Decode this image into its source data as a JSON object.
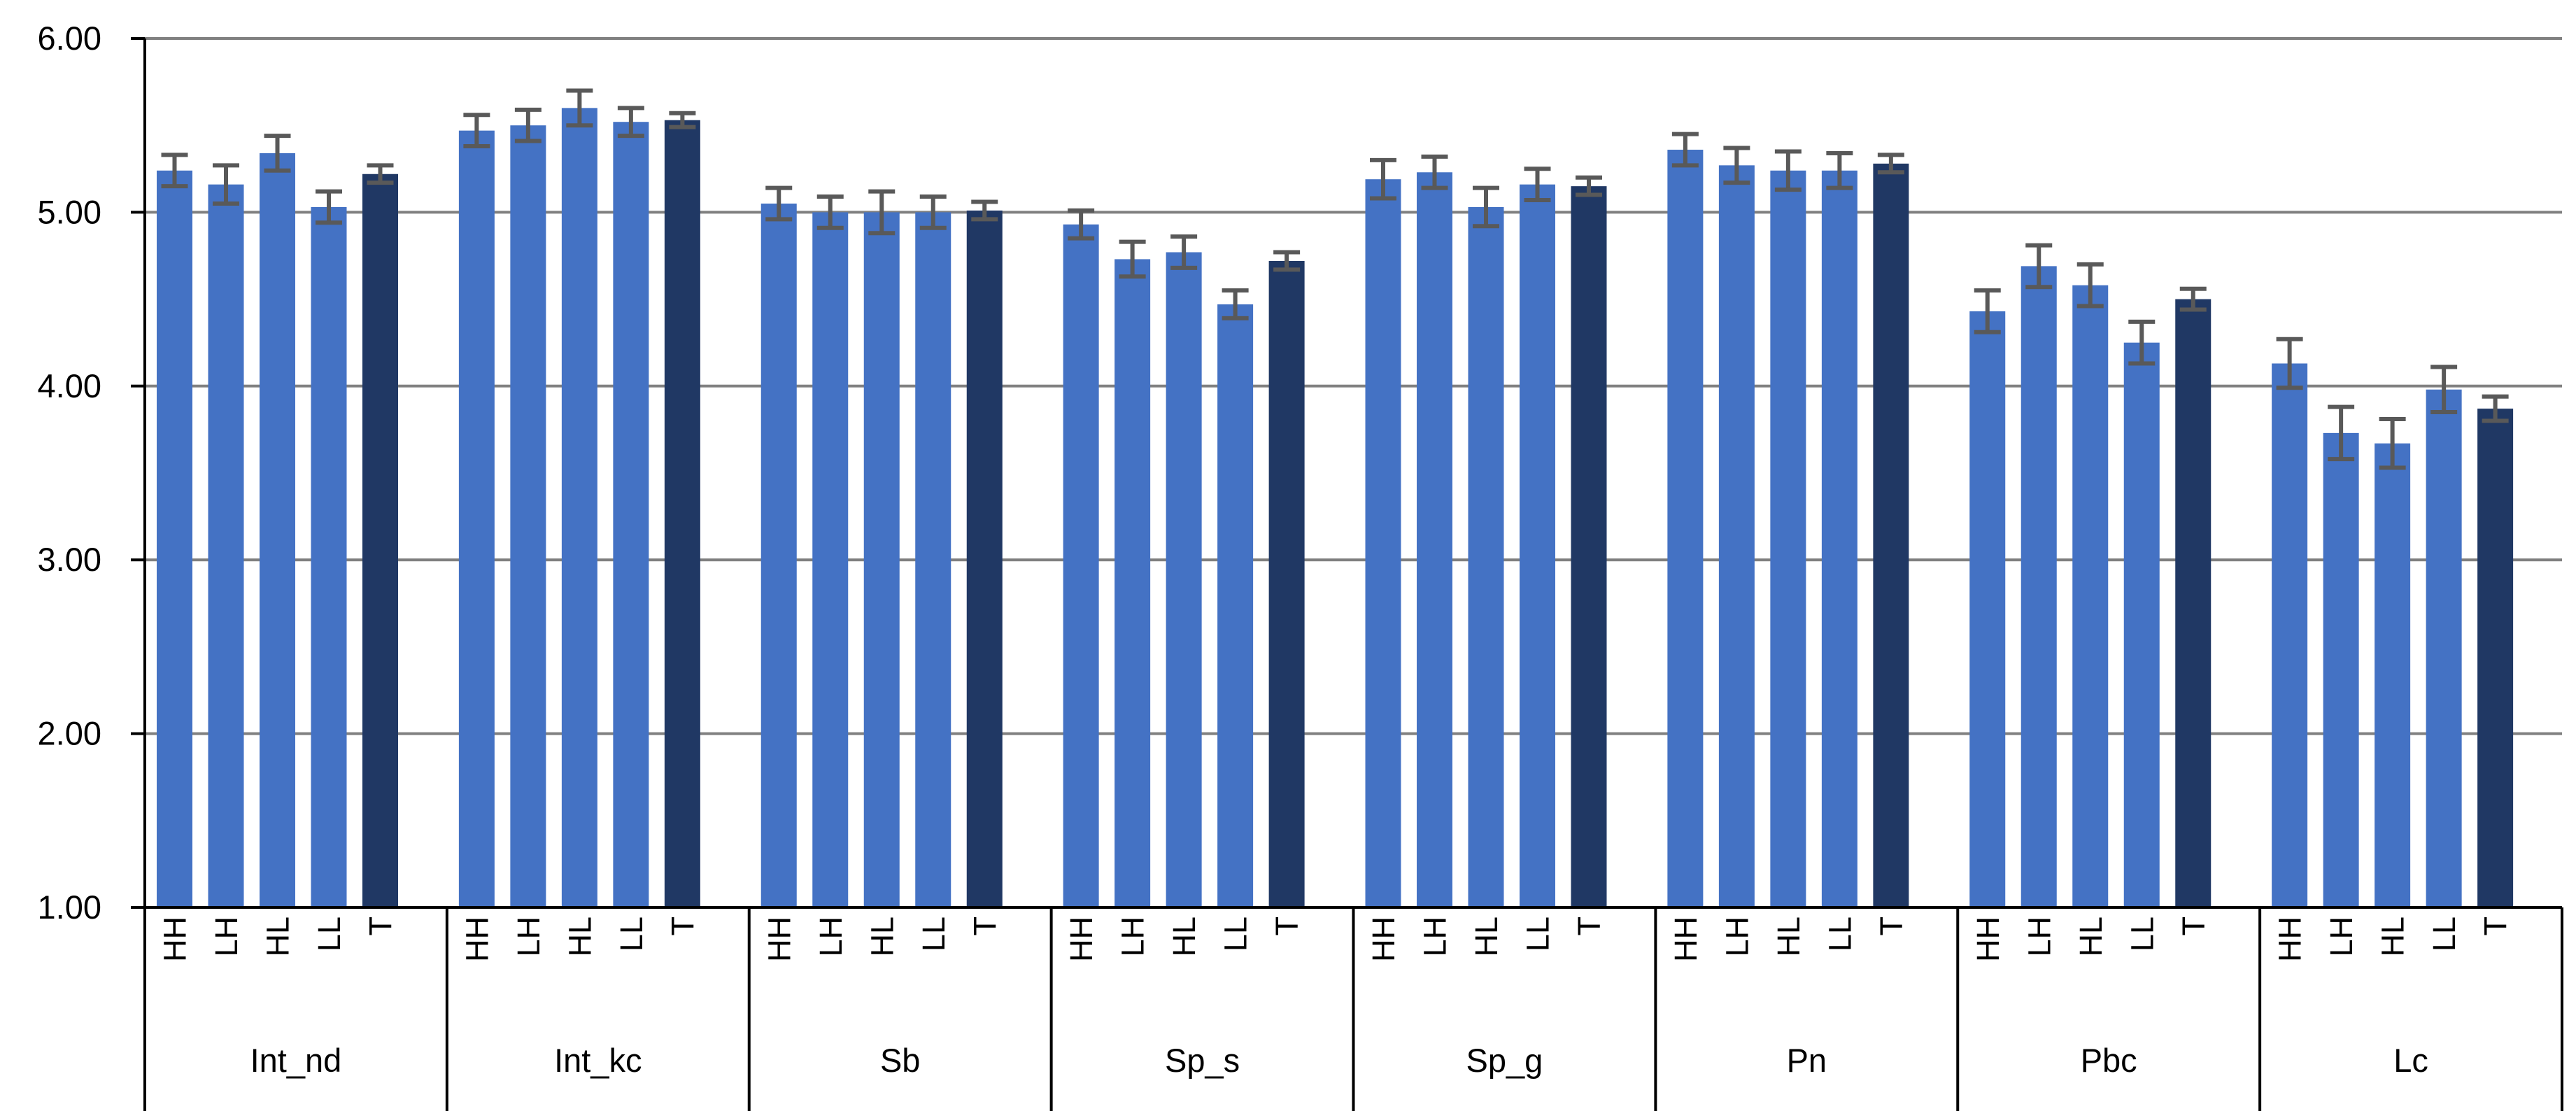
{
  "chart_data": {
    "type": "bar",
    "title": "",
    "xlabel": "",
    "ylabel": "",
    "ylim": [
      1,
      6
    ],
    "yticks": [
      "1.00",
      "2.00",
      "3.00",
      "4.00",
      "5.00",
      "6.00"
    ],
    "grid": true,
    "legend": "none",
    "colors": {
      "bar": "#4472C4",
      "total_bar": "#203864",
      "error_bar": "#595959",
      "grid": "#808080",
      "axis": "#000000"
    },
    "categories": [
      "Int_nd",
      "Int_kc",
      "Sb",
      "Sp_s",
      "Sp_g",
      "Pn",
      "Pbc",
      "Lc"
    ],
    "subcategories": [
      "HH",
      "LH",
      "HL",
      "LL",
      "T"
    ],
    "groups": [
      {
        "name": "Int_nd",
        "values": [
          5.24,
          5.16,
          5.34,
          5.03,
          5.22
        ],
        "errors": [
          0.09,
          0.11,
          0.1,
          0.09,
          0.05
        ]
      },
      {
        "name": "Int_kc",
        "values": [
          5.47,
          5.5,
          5.6,
          5.52,
          5.53
        ],
        "errors": [
          0.09,
          0.09,
          0.1,
          0.08,
          0.04
        ]
      },
      {
        "name": "Sb",
        "values": [
          5.05,
          5.0,
          5.0,
          5.0,
          5.01
        ],
        "errors": [
          0.09,
          0.09,
          0.12,
          0.09,
          0.05
        ]
      },
      {
        "name": "Sp_s",
        "values": [
          4.93,
          4.73,
          4.77,
          4.47,
          4.72
        ],
        "errors": [
          0.08,
          0.1,
          0.09,
          0.08,
          0.05
        ]
      },
      {
        "name": "Sp_g",
        "values": [
          5.19,
          5.23,
          5.03,
          5.16,
          5.15
        ],
        "errors": [
          0.11,
          0.09,
          0.11,
          0.09,
          0.05
        ]
      },
      {
        "name": "Pn",
        "values": [
          5.36,
          5.27,
          5.24,
          5.24,
          5.28
        ],
        "errors": [
          0.09,
          0.1,
          0.11,
          0.1,
          0.05
        ]
      },
      {
        "name": "Pbc",
        "values": [
          4.43,
          4.69,
          4.58,
          4.25,
          4.5
        ],
        "errors": [
          0.12,
          0.12,
          0.12,
          0.12,
          0.06
        ]
      },
      {
        "name": "Lc",
        "values": [
          4.13,
          3.73,
          3.67,
          3.98,
          3.87
        ],
        "errors": [
          0.14,
          0.15,
          0.14,
          0.13,
          0.07
        ]
      }
    ]
  }
}
